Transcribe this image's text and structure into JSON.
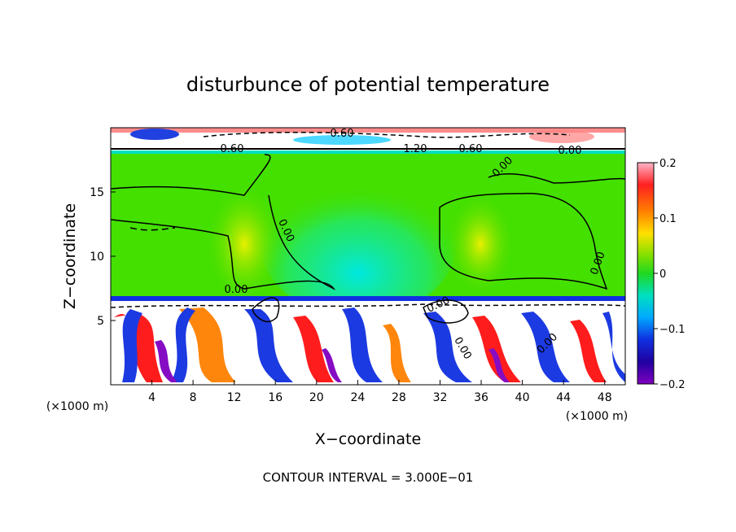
{
  "chart_data": {
    "type": "heatmap",
    "title": "disturbunce of potential temperature",
    "xlabel": "X−coordinate",
    "ylabel": "Z−coordinate",
    "x_unit": "(×1000 m)",
    "y_unit": "(×1000 m)",
    "xlim": [
      0,
      50
    ],
    "ylim": [
      0,
      20
    ],
    "x_ticks": [
      "4",
      "8",
      "12",
      "16",
      "20",
      "24",
      "28",
      "32",
      "36",
      "40",
      "44",
      "48"
    ],
    "y_ticks": [
      "5",
      "10",
      "15"
    ],
    "footer": "CONTOUR INTERVAL = 3.000E−01",
    "colorbar": {
      "range": [
        -0.2,
        0.2
      ],
      "ticks": [
        "0.2",
        "0.1",
        "0",
        "−0.1",
        "−0.2"
      ]
    },
    "contour_labels": [
      "0.60",
      "0.60",
      "1.20",
      "0.60",
      "0.00",
      "0.00",
      "0.00",
      "0.00",
      "0.00",
      "0.00",
      "0.00",
      "0.00"
    ],
    "grid": false,
    "legend": "colorbar-right"
  },
  "colors": {
    "field_background": "#44e000",
    "positive_high": "#ff1010",
    "negative_low": "#1030e0"
  }
}
